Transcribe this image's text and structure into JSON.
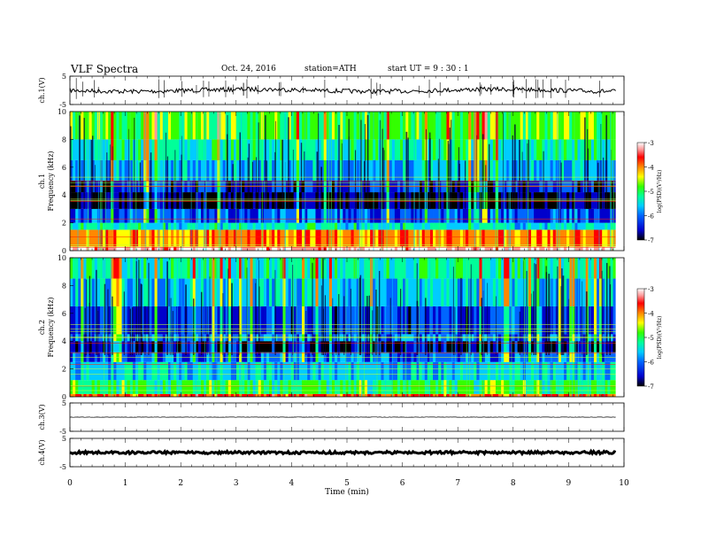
{
  "header": {
    "title": "VLF  Spectra",
    "date": "Oct. 24, 2016",
    "station": "station=ATH",
    "start": "start  UT  =    9  : 30 : 1"
  },
  "colormap": {
    "background": "#ffffff",
    "stops": [
      "#000000",
      "#0000cc",
      "#0066ff",
      "#00ccff",
      "#00ff99",
      "#33ff00",
      "#ffff00",
      "#ff8800",
      "#ff0000",
      "#ff9999",
      "#ffffff"
    ]
  },
  "chart_data": [
    {
      "type": "line",
      "name": "ch1-waveform",
      "ylabel": "ch.1(V)",
      "ylim": [
        -5,
        5
      ],
      "yticks": [
        "5",
        "-5"
      ],
      "xlim": [
        0,
        10
      ],
      "baseline_level_V": 0.0,
      "waveform_color": "#000000"
    },
    {
      "type": "heatmap",
      "name": "ch1-spectrogram",
      "ylabel_top": "ch.1",
      "ylabel": "Frequency  (kHz)",
      "ylim": [
        0,
        10
      ],
      "yticks": [
        "0",
        "2",
        "4",
        "6",
        "8",
        "10"
      ],
      "xlim": [
        0,
        9.85
      ],
      "colorbar": {
        "label": "log(PSD)(V²/Hz)",
        "range": [
          -7,
          -3
        ],
        "ticks": [
          "-3",
          "-4",
          "-5",
          "-6",
          "-7"
        ]
      },
      "bands": [
        {
          "f": [
            0.0,
            0.3
          ],
          "level": -3.2
        },
        {
          "f": [
            0.3,
            1.5
          ],
          "level": -4.2
        },
        {
          "f": [
            1.5,
            2.0
          ],
          "level": -5.6
        },
        {
          "f": [
            2.0,
            3.0
          ],
          "level": -6.3
        },
        {
          "f": [
            3.0,
            4.2
          ],
          "level": -6.9
        },
        {
          "f": [
            4.2,
            5.0
          ],
          "level": -6.5
        },
        {
          "f": [
            5.0,
            6.5
          ],
          "level": -5.9
        },
        {
          "f": [
            6.5,
            8.0
          ],
          "level": -5.5
        },
        {
          "f": [
            8.0,
            10.0
          ],
          "level": -5.1
        }
      ]
    },
    {
      "type": "heatmap",
      "name": "ch2-spectrogram",
      "ylabel_top": "ch.2",
      "ylabel": "Frequency  (kHz)",
      "ylim": [
        0,
        10
      ],
      "yticks": [
        "0",
        "2",
        "4",
        "6",
        "8",
        "10"
      ],
      "xlim": [
        0,
        9.85
      ],
      "colorbar": {
        "label": "log(PSD)(V²/Hz)",
        "range": [
          -7,
          -3
        ],
        "ticks": [
          "-3",
          "-4",
          "-5",
          "-6",
          "-7"
        ]
      },
      "bands": [
        {
          "f": [
            0.0,
            0.2
          ],
          "level": -4.0
        },
        {
          "f": [
            0.2,
            1.2
          ],
          "level": -5.2
        },
        {
          "f": [
            1.2,
            2.5
          ],
          "level": -5.8
        },
        {
          "f": [
            2.5,
            3.2
          ],
          "level": -6.2
        },
        {
          "f": [
            3.2,
            4.0
          ],
          "level": -6.7
        },
        {
          "f": [
            4.0,
            4.5
          ],
          "level": -6.1
        },
        {
          "f": [
            4.5,
            6.5
          ],
          "level": -6.4
        },
        {
          "f": [
            6.5,
            8.5
          ],
          "level": -5.8
        },
        {
          "f": [
            8.5,
            10.0
          ],
          "level": -5.4
        }
      ]
    },
    {
      "type": "line",
      "name": "ch3-waveform",
      "ylabel": "ch.3(V)",
      "ylim": [
        -5,
        5
      ],
      "yticks": [
        "5",
        "-5"
      ],
      "xlim": [
        0,
        10
      ],
      "baseline_level_V": 0.0,
      "waveform_color": "#000000"
    },
    {
      "type": "line",
      "name": "ch4-waveform",
      "ylabel": "ch.4(V)",
      "ylim": [
        -5,
        5
      ],
      "yticks": [
        "5",
        "-5"
      ],
      "xlim": [
        0,
        10
      ],
      "baseline_level_V": 0.0,
      "waveform_color": "#000000"
    }
  ],
  "x_axis": {
    "label": "Time  (min)",
    "ticks": [
      "0",
      "1",
      "2",
      "3",
      "4",
      "5",
      "6",
      "7",
      "8",
      "9",
      "10"
    ],
    "range": [
      0,
      10
    ]
  }
}
